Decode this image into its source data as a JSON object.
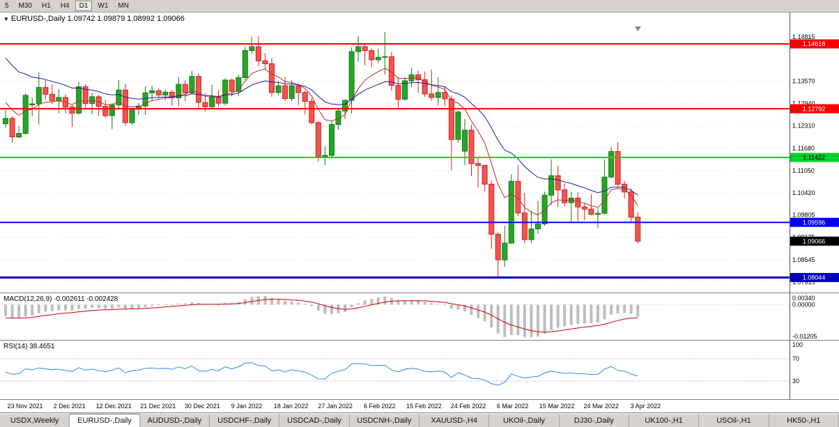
{
  "toolbar": {
    "periods": [
      {
        "label": "5",
        "active": false
      },
      {
        "label": "M30",
        "active": false
      },
      {
        "label": "H1",
        "active": false
      },
      {
        "label": "H4",
        "active": false
      },
      {
        "label": "D1",
        "active": true
      },
      {
        "label": "W1",
        "active": false
      },
      {
        "label": "MN",
        "active": false
      }
    ]
  },
  "chart": {
    "corner_icon": "▼",
    "title_symbol": "EURUSD-,Daily",
    "title_ohlc": "1.09742 1.09879 1.08992 1.09066"
  },
  "chart_data": {
    "type": "candlestick",
    "symbol": "EURUSD-",
    "timeframe": "Daily",
    "ohlc_display": {
      "open": "1.09742",
      "high": "1.09879",
      "low": "1.08992",
      "close": "1.09066"
    },
    "price_max": 1.155,
    "price_min": 1.0762,
    "y_axis_labels": [
      "1.14815",
      "1.13570",
      "1.12940",
      "1.12310",
      "1.11680",
      "1.11050",
      "1.10420",
      "1.09805",
      "1.09175",
      "1.08545",
      "1.07915"
    ],
    "x_labels": [
      "23 Nov 2021",
      "2 Dec 2021",
      "12 Dec 2021",
      "21 Dec 2021",
      "30 Dec 2021",
      "9 Jan 2022",
      "18 Jan 2022",
      "27 Jan 2022",
      "6 Feb 2022",
      "15 Feb 2022",
      "24 Feb 2022",
      "6 Mar 2022",
      "15 Mar 2022",
      "24 Mar 2022",
      "3 Apr 2022"
    ],
    "colors": {
      "up": "#26a626",
      "up_border": "#157a15",
      "down": "#f0564e",
      "down_border": "#cc2222",
      "grid": "#d9d9d9"
    },
    "hlines": [
      {
        "price": 1.14618,
        "label": "1.14618",
        "color": "#ff0000",
        "width": 2,
        "text_color": "#ffffff"
      },
      {
        "price": 1.12792,
        "label": "1.12792",
        "color": "#ff0000",
        "width": 2,
        "text_color": "#ffffff"
      },
      {
        "price": 1.11422,
        "label": "1.11422",
        "color": "#00d02a",
        "width": 2,
        "text_color": "#000000"
      },
      {
        "price": 1.09596,
        "label": "1.09596",
        "color": "#0000ff",
        "width": 2,
        "text_color": "#ffffff"
      },
      {
        "price": 1.08044,
        "label": "1.08044",
        "color": "#0000bb",
        "width": 3,
        "text_color": "#ffffff"
      }
    ],
    "current_price": {
      "value": 1.09066,
      "label": "1.09066",
      "bg": "#000000",
      "text_color": "#ffffff"
    },
    "moving_averages": [
      {
        "name": "ma-fast-red",
        "type": "ema",
        "period": 8,
        "seed": 1.131,
        "color": "#c62828"
      },
      {
        "name": "ma-slow-blue",
        "type": "ema",
        "period": 20,
        "seed": 1.144,
        "color": "#1a1aa6"
      }
    ],
    "candles": [
      [
        1.1237,
        1.1275,
        1.1226,
        1.1252
      ],
      [
        1.1252,
        1.1258,
        1.1184,
        1.12
      ],
      [
        1.12,
        1.123,
        1.1196,
        1.121
      ],
      [
        1.121,
        1.1323,
        1.1206,
        1.1317
      ],
      [
        1.129,
        1.131,
        1.1258,
        1.1293
      ],
      [
        1.1293,
        1.1383,
        1.1235,
        1.1339
      ],
      [
        1.1339,
        1.136,
        1.1305,
        1.132
      ],
      [
        1.132,
        1.1348,
        1.1293,
        1.1302
      ],
      [
        1.1302,
        1.1334,
        1.1266,
        1.1311
      ],
      [
        1.1311,
        1.132,
        1.1267,
        1.1284
      ],
      [
        1.1284,
        1.129,
        1.1228,
        1.1267
      ],
      [
        1.1267,
        1.1355,
        1.1263,
        1.1341
      ],
      [
        1.1341,
        1.1348,
        1.128,
        1.1294
      ],
      [
        1.1294,
        1.1324,
        1.1264,
        1.1313
      ],
      [
        1.1313,
        1.1319,
        1.126,
        1.1286
      ],
      [
        1.1286,
        1.1304,
        1.1254,
        1.126
      ],
      [
        1.126,
        1.1296,
        1.1222,
        1.129
      ],
      [
        1.129,
        1.136,
        1.128,
        1.1332
      ],
      [
        1.1332,
        1.135,
        1.1232,
        1.124
      ],
      [
        1.124,
        1.128,
        1.1234,
        1.1278
      ],
      [
        1.1278,
        1.1295,
        1.1262,
        1.1287
      ],
      [
        1.1287,
        1.1342,
        1.1262,
        1.1324
      ],
      [
        1.1324,
        1.1344,
        1.13,
        1.133
      ],
      [
        1.133,
        1.1338,
        1.1308,
        1.1318
      ],
      [
        1.1318,
        1.1333,
        1.1304,
        1.1326
      ],
      [
        1.1326,
        1.1332,
        1.1288,
        1.131
      ],
      [
        1.131,
        1.1369,
        1.1286,
        1.1348
      ],
      [
        1.1348,
        1.136,
        1.13,
        1.1324
      ],
      [
        1.1324,
        1.1386,
        1.132,
        1.137
      ],
      [
        1.137,
        1.1379,
        1.1278,
        1.1297
      ],
      [
        1.1297,
        1.1323,
        1.1272,
        1.1285
      ],
      [
        1.1285,
        1.1347,
        1.128,
        1.1312
      ],
      [
        1.1312,
        1.1332,
        1.1285,
        1.1295
      ],
      [
        1.1295,
        1.1365,
        1.1288,
        1.136
      ],
      [
        1.136,
        1.1363,
        1.1314,
        1.1328
      ],
      [
        1.1328,
        1.1375,
        1.1315,
        1.1367
      ],
      [
        1.1367,
        1.1453,
        1.136,
        1.1443
      ],
      [
        1.1443,
        1.1482,
        1.1434,
        1.1454
      ],
      [
        1.1454,
        1.1483,
        1.1399,
        1.1414
      ],
      [
        1.1414,
        1.1436,
        1.1391,
        1.1406
      ],
      [
        1.1406,
        1.1422,
        1.1313,
        1.1325
      ],
      [
        1.1325,
        1.1357,
        1.1317,
        1.1344
      ],
      [
        1.1344,
        1.1369,
        1.1301,
        1.1308
      ],
      [
        1.1308,
        1.136,
        1.13,
        1.1344
      ],
      [
        1.1344,
        1.1349,
        1.129,
        1.1325
      ],
      [
        1.1325,
        1.1331,
        1.1263,
        1.13
      ],
      [
        1.13,
        1.131,
        1.1235,
        1.124
      ],
      [
        1.124,
        1.1245,
        1.1131,
        1.1144
      ],
      [
        1.1144,
        1.1174,
        1.1121,
        1.1148
      ],
      [
        1.1148,
        1.1247,
        1.114,
        1.1235
      ],
      [
        1.1235,
        1.1279,
        1.122,
        1.1273
      ],
      [
        1.1273,
        1.1305,
        1.125,
        1.1303
      ],
      [
        1.1303,
        1.1452,
        1.1266,
        1.144
      ],
      [
        1.144,
        1.1484,
        1.1411,
        1.1454
      ],
      [
        1.1454,
        1.1459,
        1.1401,
        1.1443
      ],
      [
        1.1443,
        1.1449,
        1.1396,
        1.1417
      ],
      [
        1.1417,
        1.1448,
        1.1408,
        1.1424
      ],
      [
        1.1424,
        1.1495,
        1.1375,
        1.1426
      ],
      [
        1.1426,
        1.1439,
        1.133,
        1.1345
      ],
      [
        1.1345,
        1.1368,
        1.1278,
        1.1306
      ],
      [
        1.1306,
        1.1368,
        1.1301,
        1.1358
      ],
      [
        1.1358,
        1.1395,
        1.134,
        1.1375
      ],
      [
        1.1375,
        1.1386,
        1.1324,
        1.1361
      ],
      [
        1.1361,
        1.1384,
        1.1312,
        1.1321
      ],
      [
        1.1321,
        1.139,
        1.1302,
        1.1311
      ],
      [
        1.1311,
        1.1368,
        1.1288,
        1.1325
      ],
      [
        1.1325,
        1.1342,
        1.1287,
        1.1307
      ],
      [
        1.1307,
        1.1317,
        1.1106,
        1.1193
      ],
      [
        1.1193,
        1.1274,
        1.1184,
        1.127
      ],
      [
        1.116,
        1.125,
        1.1121,
        1.1219
      ],
      [
        1.1219,
        1.1234,
        1.109,
        1.1125
      ],
      [
        1.1125,
        1.1145,
        1.1058,
        1.112
      ],
      [
        1.112,
        1.1121,
        1.1045,
        1.1067
      ],
      [
        1.1067,
        1.1078,
        1.0885,
        1.0926
      ],
      [
        1.0926,
        1.0932,
        1.0806,
        1.0854
      ],
      [
        1.0854,
        1.095,
        1.0834,
        1.0901
      ],
      [
        1.0901,
        1.1095,
        1.09,
        1.1075
      ],
      [
        1.1075,
        1.1121,
        1.0977,
        1.0986
      ],
      [
        1.0986,
        1.1043,
        1.0901,
        1.0911
      ],
      [
        1.0911,
        1.0992,
        1.0901,
        1.0941
      ],
      [
        1.0941,
        1.102,
        1.0927,
        1.0955
      ],
      [
        1.0955,
        1.1046,
        1.095,
        1.1036
      ],
      [
        1.1036,
        1.1137,
        1.1008,
        1.1091
      ],
      [
        1.1091,
        1.1119,
        1.1003,
        1.1051
      ],
      [
        1.1051,
        1.1069,
        1.1005,
        1.1015
      ],
      [
        1.1015,
        1.1046,
        1.0962,
        1.1028
      ],
      [
        1.1028,
        1.1044,
        1.0963,
        1.1003
      ],
      [
        1.1003,
        1.1014,
        1.0965,
        1.0997
      ],
      [
        1.0997,
        1.1039,
        1.0979,
        1.0982
      ],
      [
        1.0982,
        1.0999,
        1.0944,
        1.0985
      ],
      [
        1.0985,
        1.1137,
        1.0982,
        1.1087
      ],
      [
        1.1087,
        1.1171,
        1.1084,
        1.1159
      ],
      [
        1.1159,
        1.1185,
        1.1061,
        1.1067
      ],
      [
        1.1067,
        1.1076,
        1.1027,
        1.1045
      ],
      [
        1.1045,
        1.1055,
        1.096,
        1.0974
      ],
      [
        1.09742,
        1.09879,
        1.08992,
        1.09066
      ]
    ]
  },
  "macd": {
    "label": "MACD(12,26,9)",
    "values_text": "-0.002611 -0.002428",
    "params": {
      "fast": 12,
      "slow": 26,
      "signal": 9
    },
    "axis_labels": {
      "max": "0.00340",
      "zero": "0.00000",
      "min": "-0.01205"
    },
    "histogram_color": "#bdbdbd",
    "signal_color": "#cc0000"
  },
  "rsi": {
    "label": "RSI(14)",
    "value_text": "38.4651",
    "period": 14,
    "line_color": "#2e8bda",
    "levels": [
      {
        "value": 100,
        "label": "100",
        "line": false
      },
      {
        "value": 70,
        "label": "70",
        "line": true
      },
      {
        "value": 30,
        "label": "30",
        "line": true
      }
    ]
  },
  "time_axis": {
    "labels": [
      "23 Nov 2021",
      "2 Dec 2021",
      "12 Dec 2021",
      "21 Dec 2021",
      "30 Dec 2021",
      "9 Jan 2022",
      "18 Jan 2022",
      "27 Jan 2022",
      "6 Feb 2022",
      "15 Feb 2022",
      "24 Feb 2022",
      "6 Mar 2022",
      "15 Mar 2022",
      "24 Mar 2022",
      "3 Apr 2022"
    ]
  },
  "tabs": {
    "items": [
      {
        "label": "USDX,Weekly",
        "active": false
      },
      {
        "label": "EURUSD-,Daily",
        "active": true
      },
      {
        "label": "AUDUSD-,Daily",
        "active": false
      },
      {
        "label": "USDCHF-,Daily",
        "active": false
      },
      {
        "label": "USDCAD-,Daily",
        "active": false
      },
      {
        "label": "USDCNH-,Daily",
        "active": false
      },
      {
        "label": "XAUUSD-,H4",
        "active": false
      },
      {
        "label": "UKOil-,Daily",
        "active": false
      },
      {
        "label": "DJ30-,Daily",
        "active": false
      },
      {
        "label": "UK100-,H1",
        "active": false
      },
      {
        "label": "USOil-,H1",
        "active": false
      },
      {
        "label": "HK50-,H1",
        "active": false
      }
    ]
  }
}
